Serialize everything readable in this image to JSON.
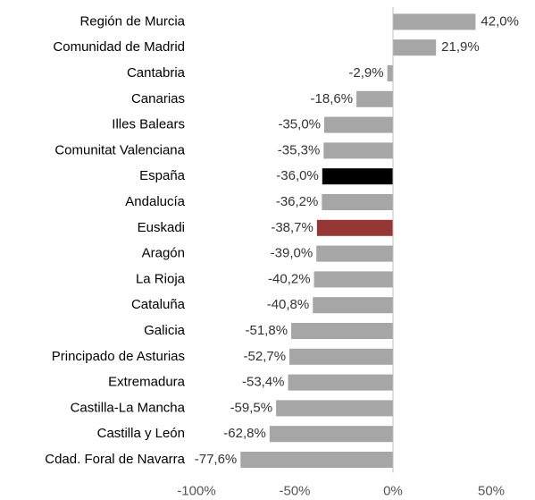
{
  "chart_data": {
    "type": "bar",
    "orientation": "horizontal",
    "categories": [
      "Región de Murcia",
      "Comunidad de Madrid",
      "Cantabria",
      "Canarias",
      "Illes Balears",
      "Comunitat Valenciana",
      "España",
      "Andalucía",
      "Euskadi",
      "Aragón",
      "La Rioja",
      "Cataluña",
      "Galicia",
      "Principado de Asturias",
      "Extremadura",
      "Castilla-La Mancha",
      "Castilla y León",
      "Cdad. Foral de Navarra"
    ],
    "values": [
      42.0,
      21.9,
      -2.9,
      -18.6,
      -35.0,
      -35.3,
      -36.0,
      -36.2,
      -38.7,
      -39.0,
      -40.2,
      -40.8,
      -51.8,
      -52.7,
      -53.4,
      -59.5,
      -62.8,
      -77.6
    ],
    "value_labels": [
      "42,0%",
      "21,9%",
      "-2,9%",
      "-18,6%",
      "-35,0%",
      "-35,3%",
      "-36,0%",
      "-36,2%",
      "-38,7%",
      "-39,0%",
      "-40,2%",
      "-40,8%",
      "-51,8%",
      "-52,7%",
      "-53,4%",
      "-59,5%",
      "-62,8%",
      "-77,6%"
    ],
    "colors": [
      "#a6a6a6",
      "#a6a6a6",
      "#a6a6a6",
      "#a6a6a6",
      "#a6a6a6",
      "#a6a6a6",
      "#000000",
      "#a6a6a6",
      "#953735",
      "#a6a6a6",
      "#a6a6a6",
      "#a6a6a6",
      "#a6a6a6",
      "#a6a6a6",
      "#a6a6a6",
      "#a6a6a6",
      "#a6a6a6",
      "#a6a6a6"
    ],
    "xlim": [
      -100,
      50
    ],
    "xticks": [
      {
        "value": -100,
        "label": "-100%"
      },
      {
        "value": -50,
        "label": "-50%"
      },
      {
        "value": 0,
        "label": "0%"
      },
      {
        "value": 50,
        "label": "50%"
      }
    ],
    "grid": false
  }
}
